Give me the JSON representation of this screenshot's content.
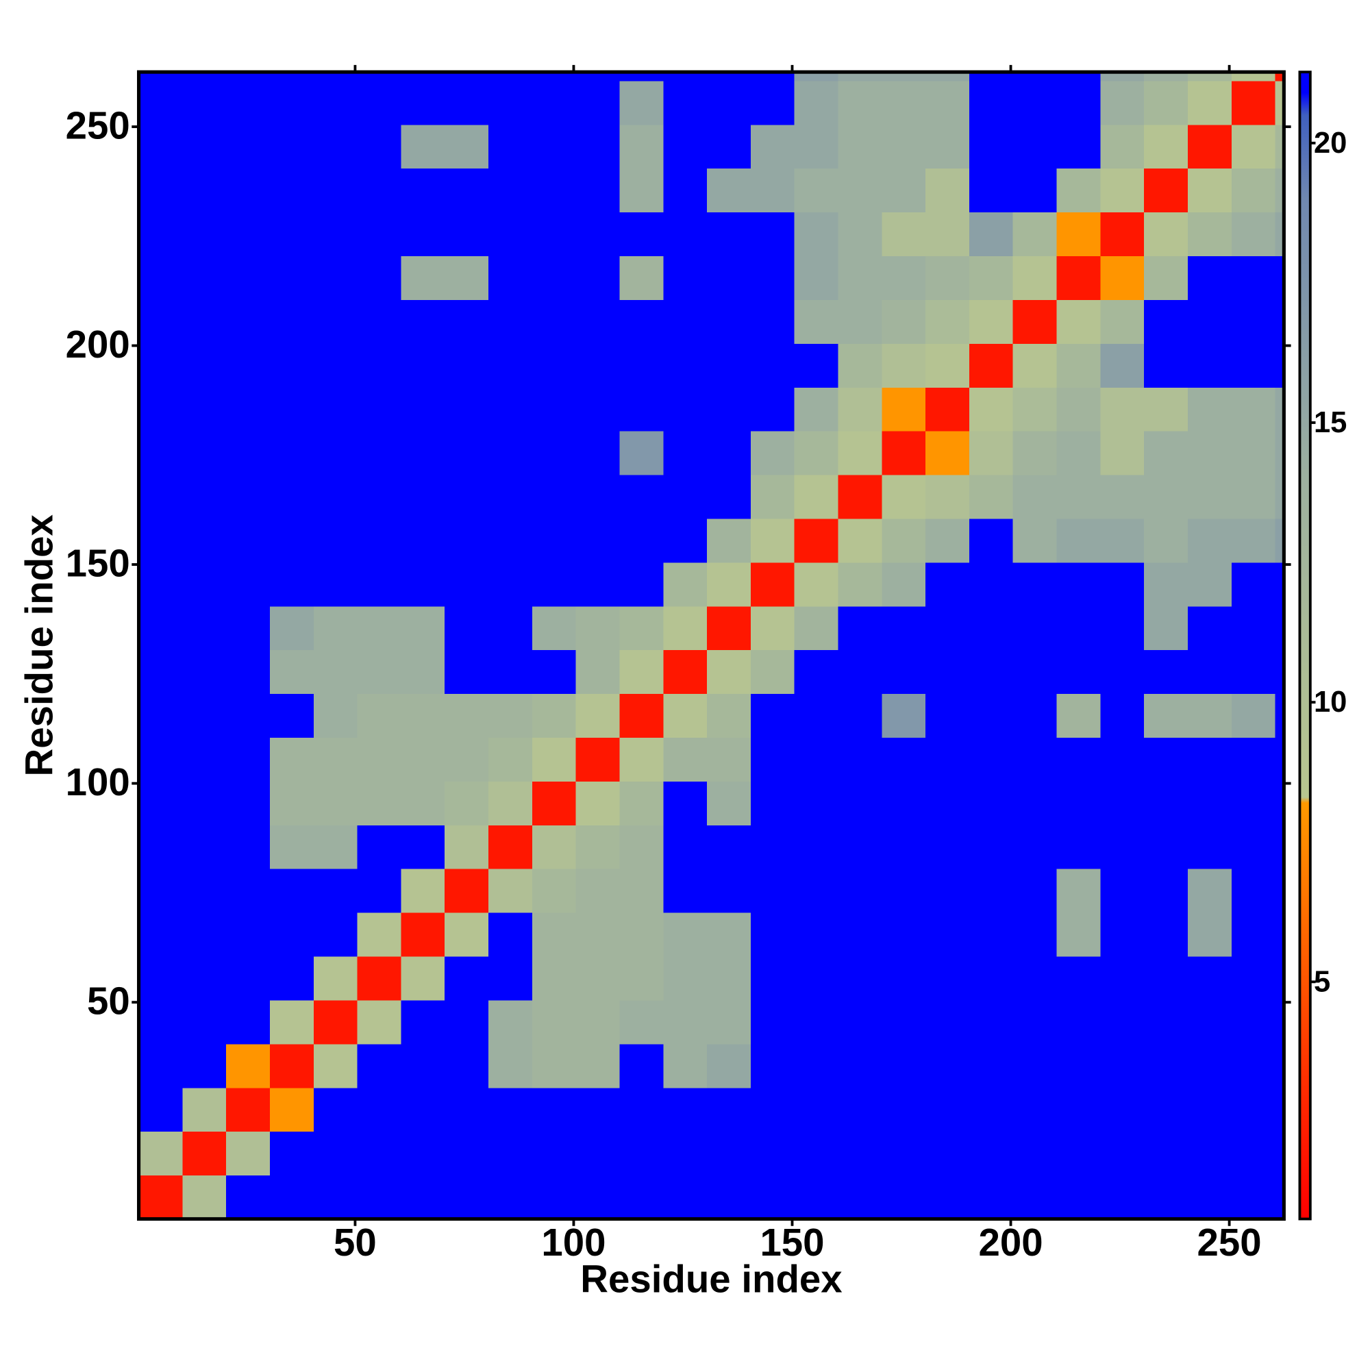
{
  "chart_data": {
    "type": "heatmap",
    "xlabel": "Residue index",
    "ylabel": "Residue index",
    "xlim": [
      0.5,
      262.5
    ],
    "ylim": [
      0.5,
      262.5
    ],
    "xticks": [
      50,
      100,
      150,
      200,
      250
    ],
    "yticks": [
      50,
      100,
      150,
      200,
      250
    ],
    "xbins": [
      0.5,
      10.5,
      20.5,
      30.5,
      40.5,
      50.5,
      60.5,
      70.5,
      80.5,
      90.5,
      100.5,
      110.5,
      120.5,
      130.5,
      140.5,
      150.5,
      160.5,
      170.5,
      180.5,
      190.5,
      200.5,
      210.5,
      220.5,
      230.5,
      240.5,
      250.5,
      260.5,
      262.5
    ],
    "ybins": [
      0.5,
      10.5,
      20.5,
      30.5,
      40.5,
      50.5,
      60.5,
      70.5,
      80.5,
      90.5,
      100.5,
      110.5,
      120.5,
      130.5,
      140.5,
      150.5,
      160.5,
      170.5,
      180.5,
      190.5,
      200.5,
      210.5,
      220.5,
      230.5,
      240.5,
      250.5,
      260.5,
      262.5
    ],
    "zlim": [
      0.76,
      21.27
    ],
    "zticks": [
      5,
      10,
      15,
      20
    ],
    "colorscale": [
      {
        "value": 0.76,
        "color": "#ff0000"
      },
      {
        "value": 3,
        "color": "#ff2a00"
      },
      {
        "value": 8.2,
        "color": "#ff9900"
      },
      {
        "value": 8.3,
        "color": "#b8c690"
      },
      {
        "value": 14,
        "color": "#9db0a0"
      },
      {
        "value": 19,
        "color": "#7088b0"
      },
      {
        "value": 20.5,
        "color": "#4060c0"
      },
      {
        "value": 20.9,
        "color": "#0000ff"
      },
      {
        "value": 21.27,
        "color": "#0000ff"
      }
    ],
    "values": [
      [
        2,
        10,
        21,
        21,
        21,
        21,
        21,
        21,
        21,
        21,
        21,
        21,
        21,
        21,
        21,
        21,
        21,
        21,
        21,
        21,
        21,
        21,
        21,
        21,
        21,
        21,
        21
      ],
      [
        10,
        2,
        10,
        21,
        21,
        21,
        21,
        21,
        21,
        21,
        21,
        21,
        21,
        21,
        21,
        21,
        21,
        21,
        21,
        21,
        21,
        21,
        21,
        21,
        21,
        21,
        21
      ],
      [
        21,
        10,
        2,
        8,
        21,
        21,
        21,
        21,
        21,
        21,
        21,
        21,
        21,
        21,
        21,
        21,
        21,
        21,
        21,
        21,
        21,
        21,
        21,
        21,
        21,
        21,
        21
      ],
      [
        21,
        21,
        8,
        2,
        9,
        21,
        21,
        21,
        14,
        13,
        13,
        21,
        14,
        15,
        21,
        21,
        21,
        21,
        21,
        21,
        21,
        21,
        21,
        21,
        21,
        21,
        21
      ],
      [
        21,
        21,
        21,
        9,
        2,
        9,
        21,
        21,
        14,
        13,
        13,
        14,
        14,
        14,
        21,
        21,
        21,
        21,
        21,
        21,
        21,
        21,
        21,
        21,
        21,
        21,
        21
      ],
      [
        21,
        21,
        21,
        21,
        9,
        2,
        9,
        21,
        21,
        13,
        13,
        13,
        14,
        14,
        21,
        21,
        21,
        21,
        21,
        21,
        21,
        21,
        21,
        21,
        21,
        21,
        21
      ],
      [
        21,
        21,
        21,
        21,
        21,
        9,
        2,
        9,
        21,
        13,
        13,
        13,
        14,
        14,
        21,
        21,
        21,
        21,
        21,
        21,
        21,
        14,
        21,
        21,
        15,
        21,
        21
      ],
      [
        21,
        21,
        21,
        21,
        21,
        21,
        9,
        2,
        10,
        12,
        13,
        13,
        21,
        21,
        21,
        21,
        21,
        21,
        21,
        21,
        21,
        14,
        21,
        21,
        15,
        21,
        21
      ],
      [
        21,
        21,
        21,
        14,
        14,
        21,
        21,
        10,
        2,
        10,
        12,
        13,
        21,
        21,
        21,
        21,
        21,
        21,
        21,
        21,
        21,
        21,
        21,
        21,
        21,
        21,
        21
      ],
      [
        21,
        21,
        21,
        13,
        13,
        13,
        13,
        12,
        10,
        2,
        9,
        12,
        21,
        14,
        21,
        21,
        21,
        21,
        21,
        21,
        21,
        21,
        21,
        21,
        21,
        21,
        21
      ],
      [
        21,
        21,
        21,
        13,
        13,
        13,
        13,
        13,
        12,
        9,
        2,
        9,
        13,
        13,
        21,
        21,
        21,
        21,
        21,
        21,
        21,
        21,
        21,
        21,
        21,
        21,
        21
      ],
      [
        21,
        21,
        21,
        21,
        14,
        13,
        13,
        13,
        13,
        12,
        9,
        2,
        9,
        12,
        21,
        21,
        21,
        17,
        21,
        21,
        21,
        13,
        21,
        14,
        14,
        15,
        21
      ],
      [
        21,
        21,
        21,
        14,
        14,
        14,
        14,
        21,
        21,
        21,
        13,
        9,
        2,
        9,
        12,
        21,
        21,
        21,
        21,
        21,
        21,
        21,
        21,
        21,
        21,
        21,
        21
      ],
      [
        21,
        21,
        21,
        15,
        14,
        14,
        14,
        21,
        21,
        14,
        13,
        12,
        9,
        2,
        9,
        13,
        21,
        21,
        21,
        21,
        21,
        21,
        21,
        15,
        21,
        21,
        21
      ],
      [
        21,
        21,
        21,
        21,
        21,
        21,
        21,
        21,
        21,
        21,
        21,
        21,
        12,
        9,
        2,
        9,
        12,
        14,
        21,
        21,
        21,
        21,
        21,
        15,
        15,
        21,
        21
      ],
      [
        21,
        21,
        21,
        21,
        21,
        21,
        21,
        21,
        21,
        21,
        21,
        21,
        21,
        13,
        9,
        2,
        9,
        12,
        14,
        21,
        14,
        15,
        15,
        14,
        15,
        15,
        16
      ],
      [
        21,
        21,
        21,
        21,
        21,
        21,
        21,
        21,
        21,
        21,
        21,
        21,
        21,
        21,
        12,
        9,
        2,
        9,
        10,
        12,
        14,
        14,
        14,
        14,
        14,
        14,
        15
      ],
      [
        21,
        21,
        21,
        21,
        21,
        21,
        21,
        21,
        21,
        21,
        21,
        17,
        21,
        21,
        14,
        12,
        9,
        2,
        8,
        10,
        13,
        14,
        10,
        14,
        14,
        14,
        15
      ],
      [
        21,
        21,
        21,
        21,
        21,
        21,
        21,
        21,
        21,
        21,
        21,
        21,
        21,
        21,
        21,
        14,
        10,
        8,
        2,
        9,
        11,
        13,
        10,
        10,
        14,
        14,
        15
      ],
      [
        21,
        21,
        21,
        21,
        21,
        21,
        21,
        21,
        21,
        21,
        21,
        21,
        21,
        21,
        21,
        21,
        12,
        10,
        9,
        2,
        9,
        12,
        16,
        21,
        21,
        21,
        21
      ],
      [
        21,
        21,
        21,
        21,
        21,
        21,
        21,
        21,
        21,
        21,
        21,
        21,
        21,
        21,
        21,
        14,
        14,
        13,
        11,
        9,
        2,
        9,
        12,
        21,
        21,
        21,
        21
      ],
      [
        21,
        21,
        21,
        21,
        21,
        21,
        14,
        14,
        21,
        21,
        21,
        13,
        21,
        21,
        21,
        15,
        14,
        14,
        13,
        12,
        9,
        2,
        8,
        12,
        21,
        21,
        21
      ],
      [
        21,
        21,
        21,
        21,
        21,
        21,
        21,
        21,
        21,
        21,
        21,
        21,
        21,
        21,
        21,
        15,
        14,
        10,
        10,
        16,
        12,
        8,
        2,
        9,
        12,
        14,
        15
      ],
      [
        21,
        21,
        21,
        21,
        21,
        21,
        21,
        21,
        21,
        21,
        21,
        14,
        21,
        15,
        15,
        14,
        14,
        14,
        10,
        21,
        21,
        12,
        9,
        2,
        9,
        12,
        14
      ],
      [
        21,
        21,
        21,
        21,
        21,
        21,
        15,
        15,
        21,
        21,
        21,
        14,
        21,
        21,
        15,
        15,
        14,
        14,
        14,
        21,
        21,
        21,
        12,
        9,
        2,
        9,
        12
      ],
      [
        21,
        21,
        21,
        21,
        21,
        21,
        21,
        21,
        21,
        21,
        21,
        15,
        21,
        21,
        21,
        15,
        14,
        14,
        14,
        21,
        21,
        21,
        14,
        12,
        9,
        2,
        9
      ],
      [
        21,
        21,
        21,
        21,
        21,
        21,
        21,
        21,
        21,
        21,
        21,
        21,
        21,
        21,
        21,
        16,
        15,
        15,
        15,
        21,
        21,
        21,
        15,
        14,
        12,
        9,
        2
      ]
    ]
  }
}
